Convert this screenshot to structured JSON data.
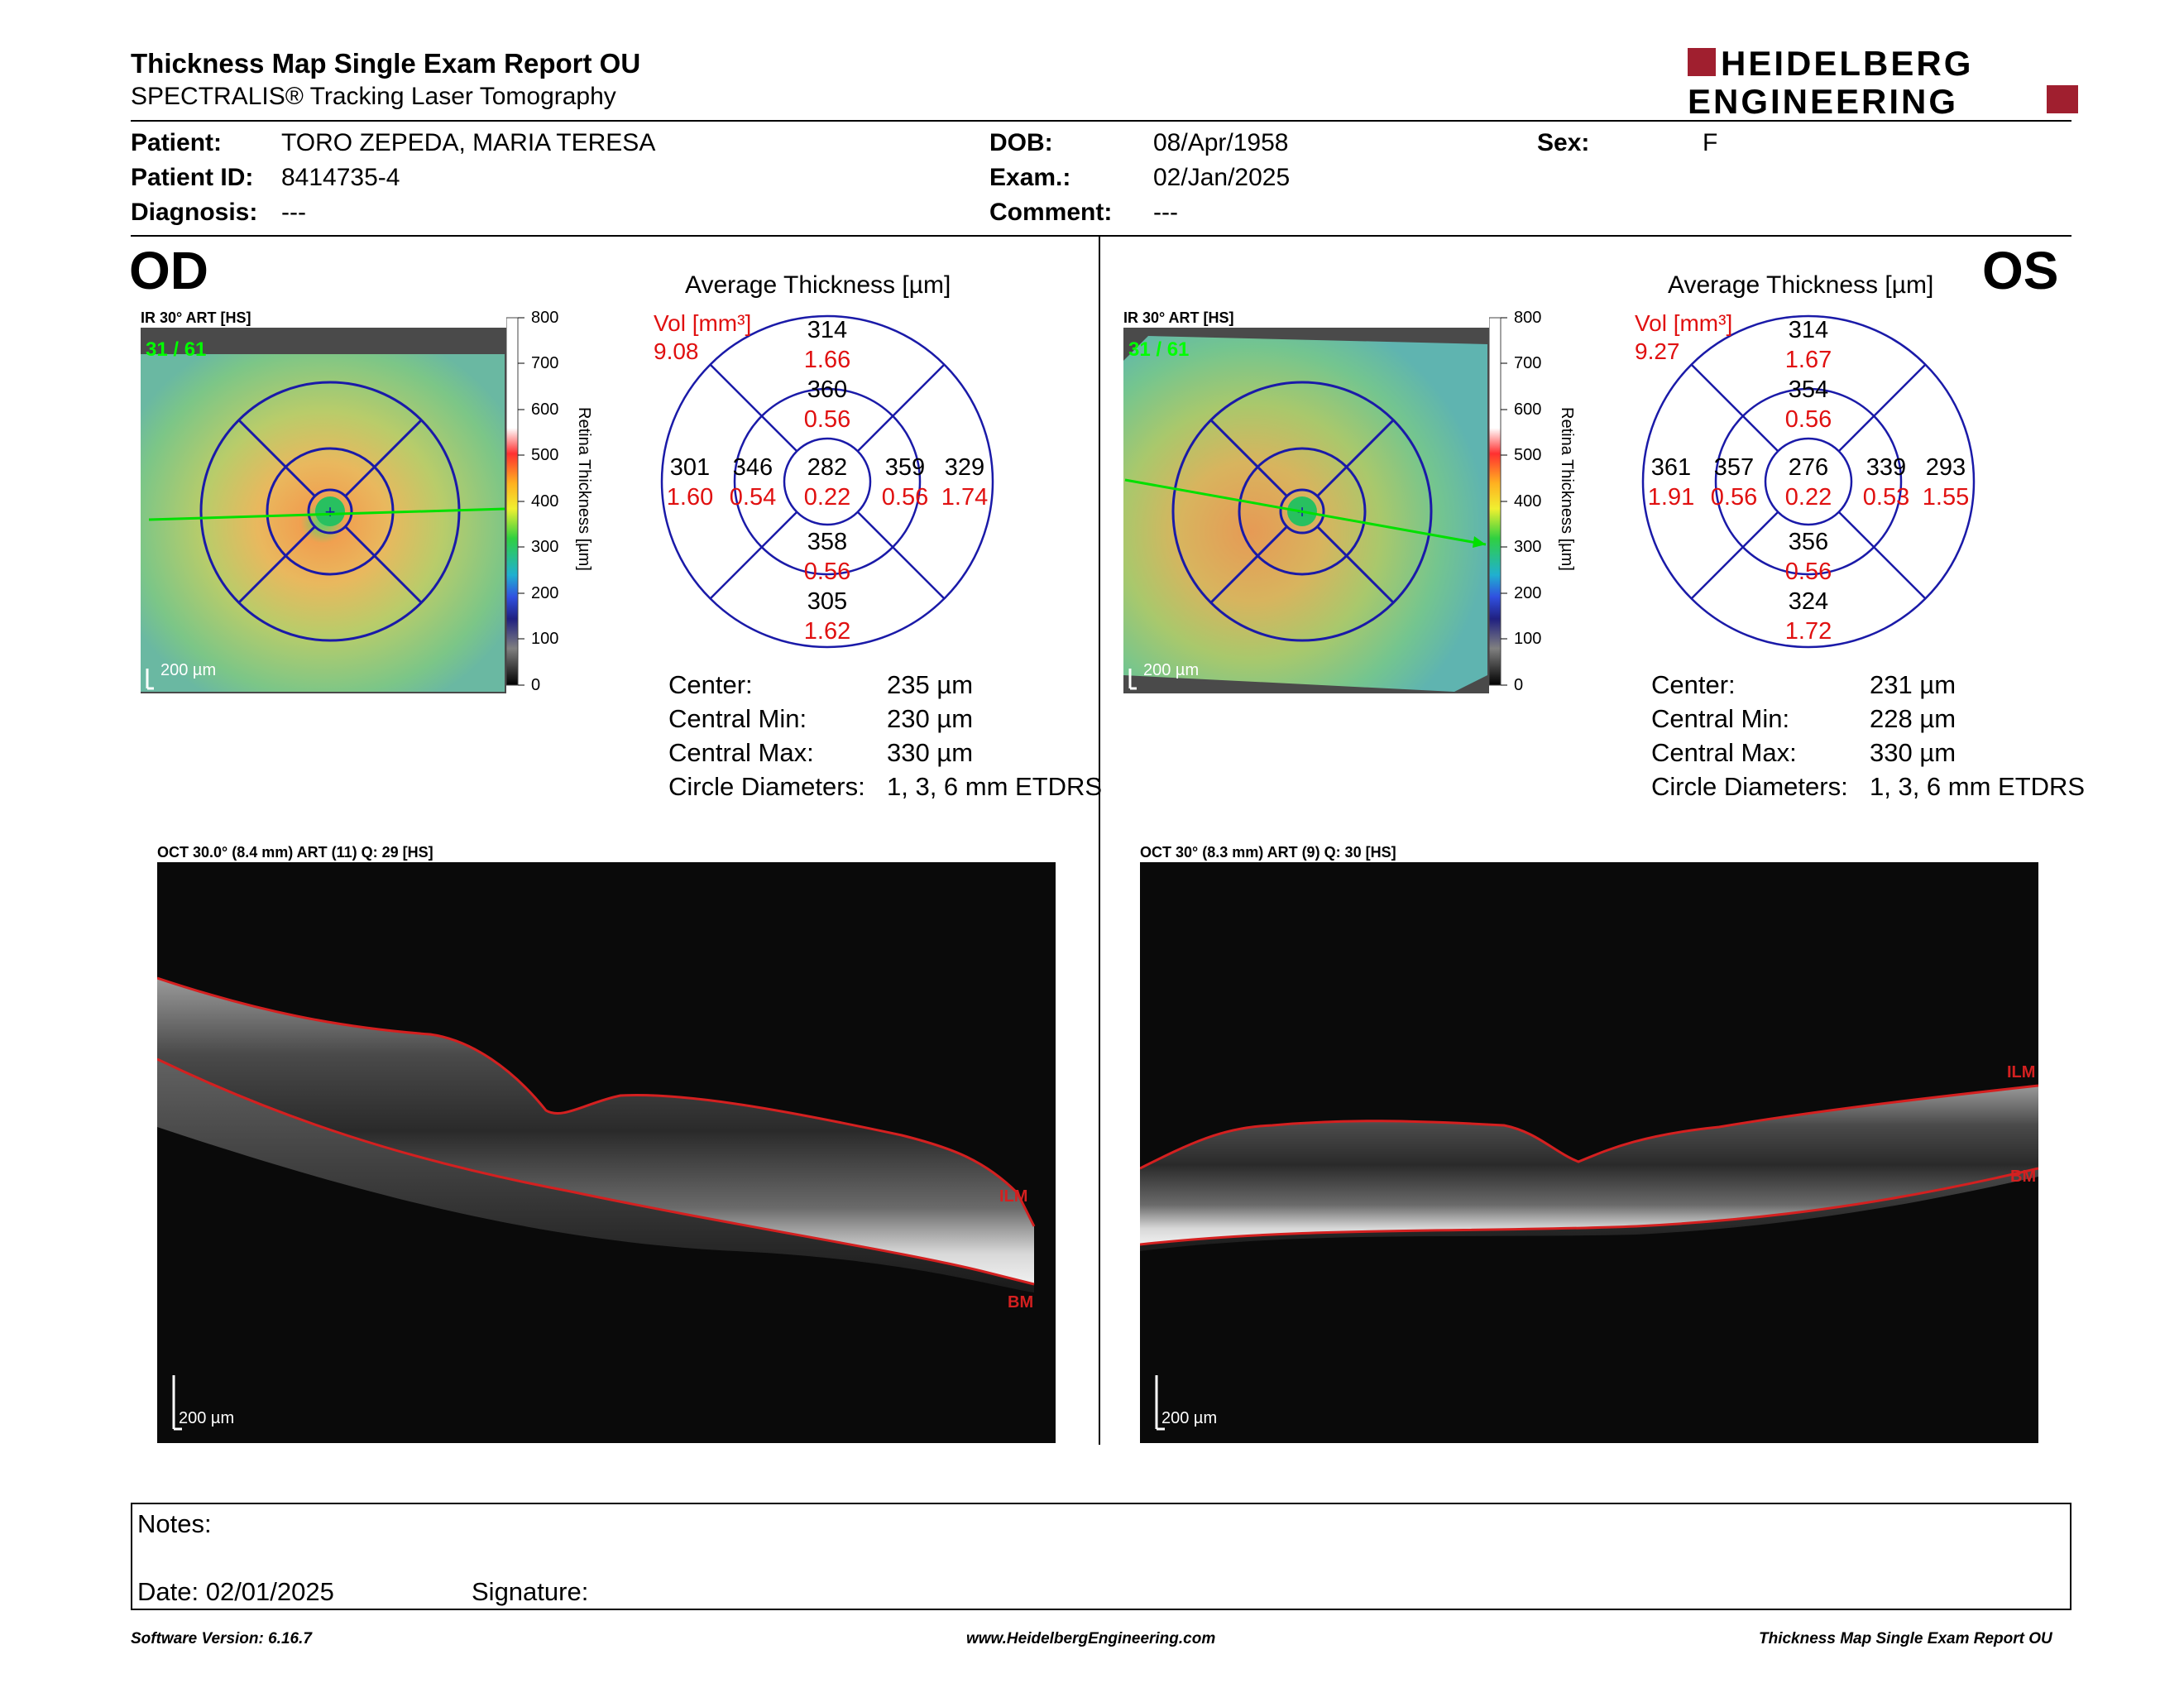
{
  "header": {
    "title": "Thickness Map Single Exam Report OU",
    "subtitle": "SPECTRALIS® Tracking Laser Tomography",
    "logo_line1": "HEIDELBERG",
    "logo_line2": "ENGINEERING"
  },
  "patient": {
    "patient_label": "Patient:",
    "patient_value": "TORO ZEPEDA, MARIA TERESA",
    "id_label": "Patient ID:",
    "id_value": "8414735-4",
    "diagnosis_label": "Diagnosis:",
    "diagnosis_value": "---",
    "dob_label": "DOB:",
    "dob_value": "08/Apr/1958",
    "exam_label": "Exam.:",
    "exam_value": "02/Jan/2025",
    "comment_label": "Comment:",
    "comment_value": "---",
    "sex_label": "Sex:",
    "sex_value": "F"
  },
  "od": {
    "eye": "OD",
    "ir_label": "IR 30° ART [HS]",
    "frame": "31 / 61",
    "scale_ir": "200 µm",
    "colorbar_ticks": [
      "800",
      "700",
      "600",
      "500",
      "400",
      "300",
      "200",
      "100",
      "0"
    ],
    "colorbar_title": "Retina Thickness [µm]",
    "grid_title": "Average Thickness [µm]",
    "vol_label": "Vol [mm³]",
    "vol_value": "9.08",
    "sectors": {
      "outer_sup": [
        "314",
        "1.66"
      ],
      "inner_sup": [
        "360",
        "0.56"
      ],
      "outer_temp": [
        "301",
        "1.60"
      ],
      "inner_temp": [
        "346",
        "0.54"
      ],
      "center": [
        "282",
        "0.22"
      ],
      "inner_nasal": [
        "359",
        "0.56"
      ],
      "outer_nasal": [
        "329",
        "1.74"
      ],
      "inner_inf": [
        "358",
        "0.56"
      ],
      "outer_inf": [
        "305",
        "1.62"
      ]
    },
    "stats": [
      [
        "Center:",
        "235 µm"
      ],
      [
        "Central Min:",
        "230 µm"
      ],
      [
        "Central Max:",
        "330 µm"
      ],
      [
        "Circle Diameters:",
        "1, 3, 6 mm ETDRS"
      ]
    ],
    "oct_label": "OCT 30.0° (8.4 mm) ART (11) Q: 29 [HS]",
    "scale_oct": "200 µm",
    "ilm": "ILM",
    "bm": "BM"
  },
  "os": {
    "eye": "OS",
    "ir_label": "IR 30° ART [HS]",
    "frame": "31 / 61",
    "scale_ir": "200 µm",
    "colorbar_ticks": [
      "800",
      "700",
      "600",
      "500",
      "400",
      "300",
      "200",
      "100",
      "0"
    ],
    "colorbar_title": "Retina Thickness [µm]",
    "grid_title": "Average Thickness [µm]",
    "vol_label": "Vol [mm³]",
    "vol_value": "9.27",
    "sectors": {
      "outer_sup": [
        "314",
        "1.67"
      ],
      "inner_sup": [
        "354",
        "0.56"
      ],
      "outer_temp": [
        "361",
        "1.91"
      ],
      "inner_temp": [
        "357",
        "0.56"
      ],
      "center": [
        "276",
        "0.22"
      ],
      "inner_nasal": [
        "339",
        "0.53"
      ],
      "outer_nasal": [
        "293",
        "1.55"
      ],
      "inner_inf": [
        "356",
        "0.56"
      ],
      "outer_inf": [
        "324",
        "1.72"
      ]
    },
    "stats": [
      [
        "Center:",
        "231 µm"
      ],
      [
        "Central Min:",
        "228 µm"
      ],
      [
        "Central Max:",
        "330 µm"
      ],
      [
        "Circle Diameters:",
        "1, 3, 6 mm ETDRS"
      ]
    ],
    "oct_label": "OCT 30° (8.3 mm) ART (9) Q: 30 [HS]",
    "scale_oct": "200 µm",
    "ilm": "ILM",
    "bm": "BM"
  },
  "notes": {
    "notes_label": "Notes:",
    "date_label": "Date: 02/01/2025",
    "signature_label": "Signature:"
  },
  "footer": {
    "software": "Software Version: 6.16.7",
    "website": "www.HeidelbergEngineering.com",
    "report": "Thickness Map Single Exam Report OU"
  },
  "colors": {
    "grid_blue": "#1a1aa8",
    "value_red": "#e01010",
    "brand_red": "#a01f2f",
    "seg_red": "#d42020"
  }
}
